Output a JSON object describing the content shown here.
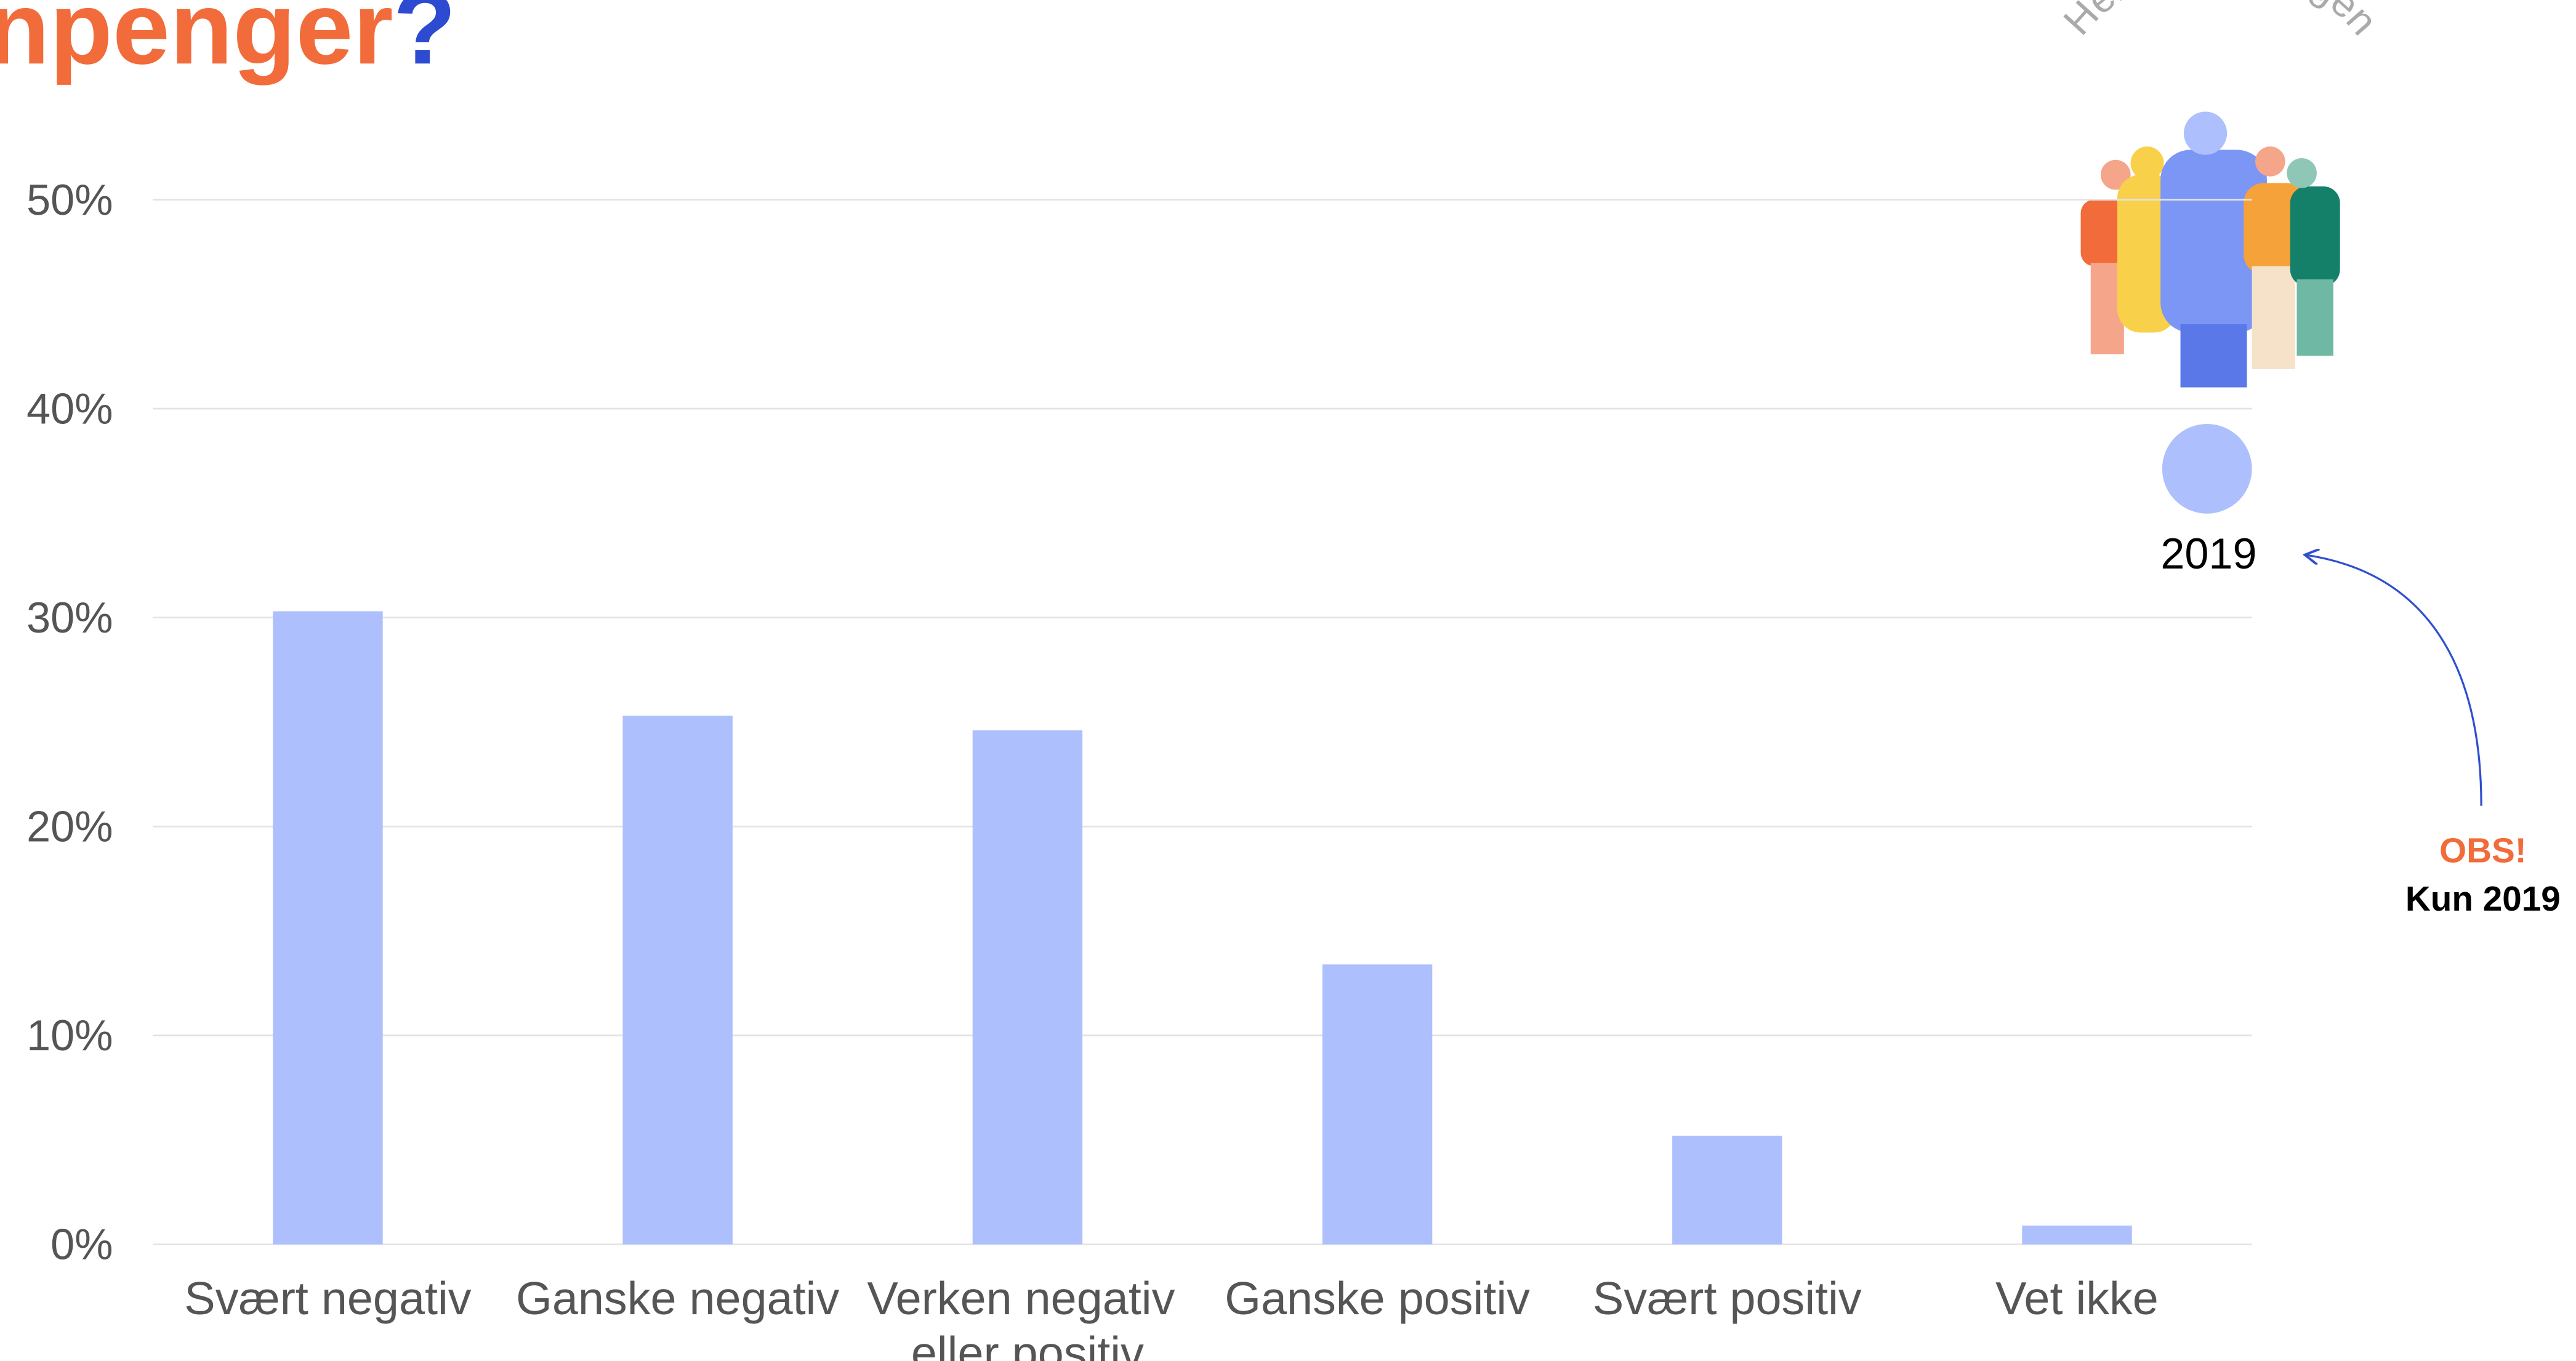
{
  "chart_data": {
    "type": "bar",
    "title": "npenger",
    "title_mark": "?",
    "categories": [
      "Svært negativ",
      "Ganske negativ",
      "Verken negativ eller positiv",
      "Ganske positiv",
      "Svært positiv",
      "Vet ikke"
    ],
    "series": [
      {
        "name": "2019",
        "color": "#aebffd",
        "values": [
          30.3,
          25.3,
          24.6,
          13.4,
          5.2,
          0.9
        ]
      }
    ],
    "ylim": [
      0,
      50
    ],
    "yticks": [
      {
        "value": 0,
        "label": "0%"
      },
      {
        "value": 10,
        "label": "10%"
      },
      {
        "value": 20,
        "label": "20%"
      },
      {
        "value": 30,
        "label": "30%"
      },
      {
        "value": 40,
        "label": "40%"
      },
      {
        "value": 50,
        "label": "50%"
      }
    ],
    "grid": true,
    "legend_title": "Hele befolkningen",
    "annotation": {
      "title": "OBS!",
      "text": "Kun 2019"
    }
  }
}
